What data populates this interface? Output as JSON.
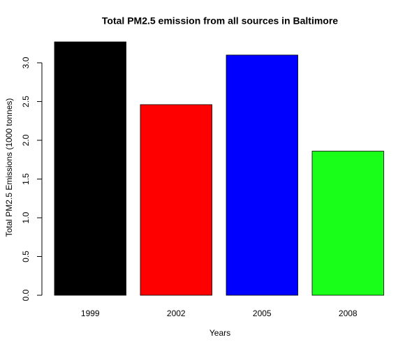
{
  "chart_data": {
    "type": "bar",
    "title": "Total PM2.5 emission from all sources in Baltimore",
    "x_label": "Years",
    "y_label": "Total PM2.5 Emissions (1000 tonnes)",
    "categories": [
      "1999",
      "2002",
      "2005",
      "2008"
    ],
    "values": [
      3.27,
      2.46,
      3.1,
      1.86
    ],
    "colors": [
      "#000000",
      "#ff0000",
      "#0000ff",
      "#1aff1a"
    ],
    "ylim": [
      0,
      3.27
    ],
    "yticks": [
      {
        "value": 0,
        "label": "0.0"
      },
      {
        "value": 0.5,
        "label": "0.5"
      },
      {
        "value": 1,
        "label": "1.0"
      },
      {
        "value": 1.5,
        "label": "1.5"
      },
      {
        "value": 2,
        "label": "2.0"
      },
      {
        "value": 2.5,
        "label": "2.5"
      },
      {
        "value": 3,
        "label": "3.0"
      }
    ]
  }
}
